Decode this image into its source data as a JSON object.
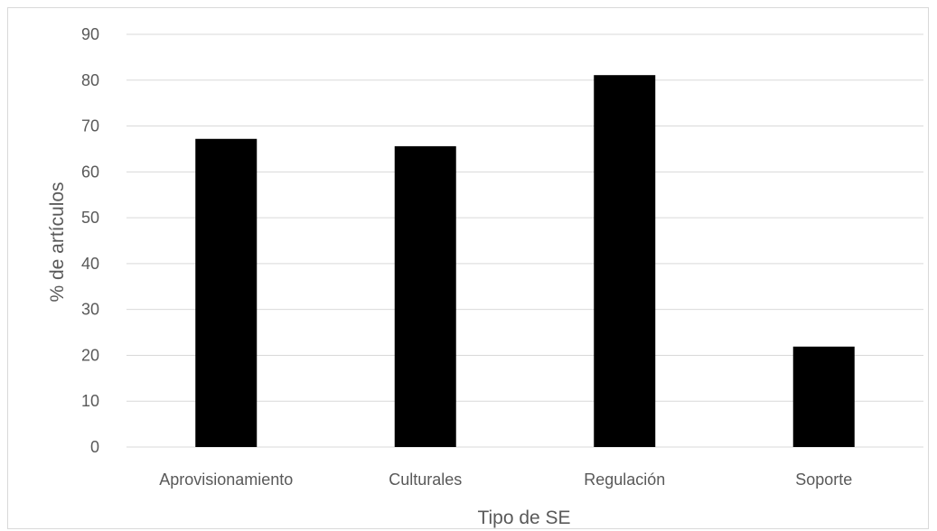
{
  "chart_data": {
    "type": "bar",
    "categories": [
      "Aprovisionamiento",
      "Culturales",
      "Regulación",
      "Soporte"
    ],
    "values": [
      67.2,
      65.6,
      81.1,
      21.9
    ],
    "title": "",
    "xlabel": "Tipo de SE",
    "ylabel": "% de artículos",
    "ylim": [
      0,
      90
    ],
    "yticks": [
      0,
      10,
      20,
      30,
      40,
      50,
      60,
      70,
      80,
      90
    ],
    "grid": true,
    "bar_color": "#000000",
    "grid_color": "#d9d9d9",
    "text_color": "#595959"
  }
}
